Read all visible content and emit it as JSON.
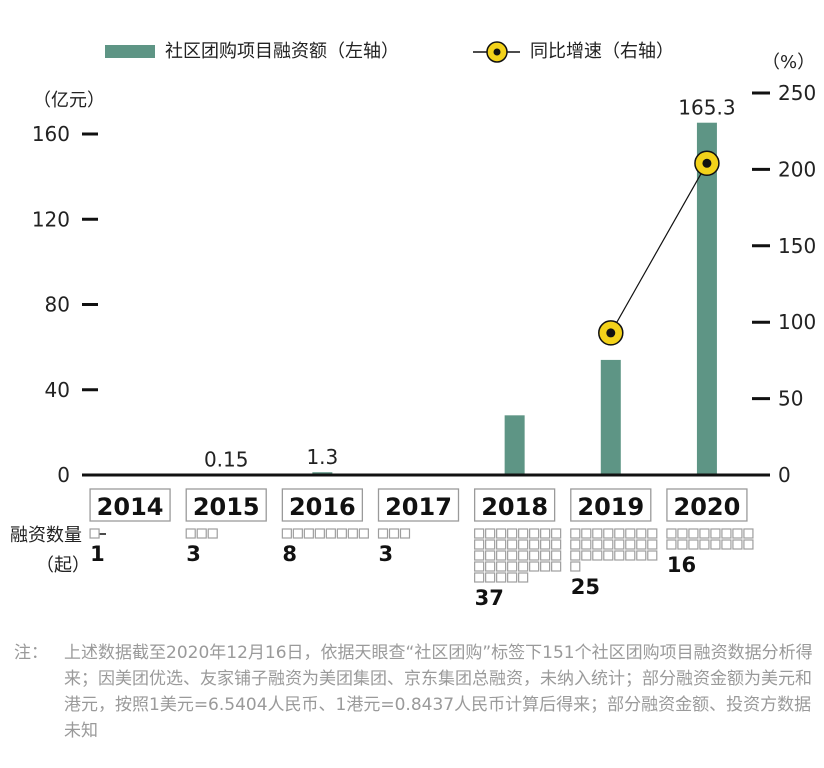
{
  "chart_data": {
    "type": "bar+line",
    "categories": [
      "2014",
      "2015",
      "2016",
      "2017",
      "2018",
      "2019",
      "2020"
    ],
    "series": [
      {
        "name": "社区团购项目融资额（左轴）",
        "type": "bar",
        "axis": "left",
        "values": [
          0,
          0.15,
          1.3,
          0,
          28,
          54,
          165.3
        ],
        "data_labels": [
          "",
          "0.15",
          "1.3",
          "",
          "",
          "",
          "165.3"
        ],
        "color": "#5e9585"
      },
      {
        "name": "同比增速（右轴）",
        "type": "line",
        "axis": "right",
        "points": [
          {
            "category": "2019",
            "value": 93
          },
          {
            "category": "2020",
            "value": 204
          }
        ],
        "marker_fill": "#f3d21a",
        "marker_dot": "#111111",
        "line_color": "#111111"
      }
    ],
    "left_axis": {
      "unit": "（亿元）",
      "ticks": [
        0,
        40,
        80,
        120,
        160
      ],
      "ylim": [
        0,
        180
      ]
    },
    "right_axis": {
      "unit": "（%）",
      "ticks": [
        0,
        50,
        100,
        150,
        200,
        250
      ],
      "ylim": [
        0,
        250
      ]
    },
    "financing_count": {
      "label": "融资数量",
      "unit": "（起）",
      "values": [
        1,
        3,
        8,
        3,
        37,
        25,
        16
      ]
    },
    "legend_position": "top"
  },
  "note": {
    "label": "注：",
    "text": "上述数据截至2020年12月16日，依据天眼查“社区团购”标签下151个社区团购项目融资数据分析得来；因美团优选、友家铺子融资为美团集团、京东集团总融资，未纳入统计；部分融资金额为美元和港元，按照1美元=6.5404人民币、1港元=0.8437人民币计算后得来；部分融资金额、投资方数据未知"
  },
  "colors": {
    "bar": "#5e9585",
    "marker": "#f3d21a",
    "axis": "#111111",
    "square": "#9e9e9e",
    "note": "#9a9a9a"
  }
}
